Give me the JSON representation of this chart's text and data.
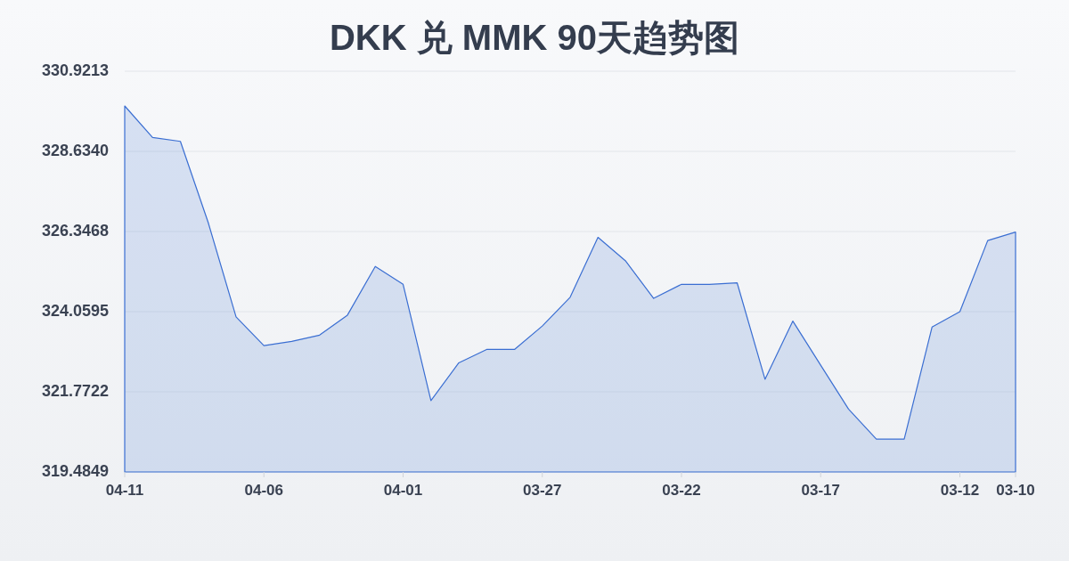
{
  "chart_data": {
    "type": "area",
    "title": "DKK 兑 MMK 90天趋势图",
    "x": [
      "--04-11",
      "--04-10",
      "--04-09",
      "--04-08",
      "--04-07",
      "--04-06",
      "--04-05",
      "--04-04",
      "--04-03",
      "--04-02",
      "--04-01",
      "--03-31",
      "--03-30",
      "--03-29",
      "--03-28",
      "--03-27",
      "--03-26",
      "--03-25",
      "--03-24",
      "--03-23",
      "--03-22",
      "--03-21",
      "--03-20",
      "--03-19",
      "--03-18",
      "--03-17",
      "--03-16",
      "--03-15",
      "--03-14",
      "--03-13",
      "--03-12",
      "--03-11",
      "--03-10"
    ],
    "series": [
      {
        "color": "#3a6ed2",
        "values": [
          329.93,
          329.03,
          328.92,
          326.6,
          323.91,
          323.09,
          323.21,
          323.39,
          323.96,
          325.35,
          324.84,
          321.52,
          322.6,
          322.98,
          322.98,
          323.65,
          324.47,
          326.18,
          325.5,
          324.44,
          324.84,
          324.84,
          324.88,
          322.13,
          323.79,
          322.53,
          321.28,
          320.42,
          320.42,
          323.62,
          324.06,
          326.09,
          326.33
        ]
      }
    ],
    "xlim": [
      "--04-11",
      "--03-10"
    ],
    "xticks": [
      {
        "value": "--04-11",
        "label": "04-11"
      },
      {
        "value": "--04-06",
        "label": "04-06"
      },
      {
        "value": "--04-01",
        "label": "04-01"
      },
      {
        "value": "--03-27",
        "label": "03-27"
      },
      {
        "value": "--03-22",
        "label": "03-22"
      },
      {
        "value": "--03-17",
        "label": "03-17"
      },
      {
        "value": "--03-12",
        "label": "03-12"
      },
      {
        "value": "--03-10",
        "label": "03-10"
      }
    ],
    "ylim": [
      319.4849,
      330.9213
    ],
    "yticks": [
      319.4849,
      321.7722,
      324.0595,
      326.3468,
      {
        "value": 328.634,
        "label": "328.6340"
      },
      330.9213
    ],
    "grid": "y"
  }
}
